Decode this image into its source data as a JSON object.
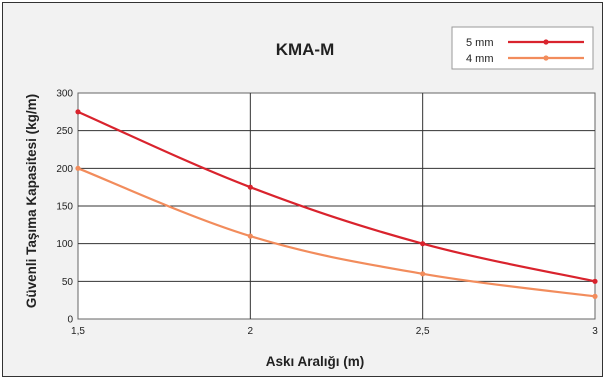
{
  "chart_data": {
    "type": "line",
    "title": "KMA-M",
    "xlabel": "Askı Aralığı (m)",
    "ylabel": "Güvenli Taşıma Kapasitesi (kg/m)",
    "x": [
      1.5,
      2,
      2.5,
      3
    ],
    "x_tick_labels": [
      "1,5",
      "2",
      "2,5",
      "3"
    ],
    "xlim": [
      1.5,
      3
    ],
    "ylim": [
      0,
      300
    ],
    "y_ticks": [
      0,
      50,
      100,
      150,
      200,
      250,
      300
    ],
    "grid": true,
    "legend_position": "top-right",
    "series": [
      {
        "name": "5 mm",
        "color": "#d9232d",
        "values": [
          275,
          175,
          100,
          50
        ]
      },
      {
        "name": "4 mm",
        "color": "#f28c5c",
        "values": [
          200,
          110,
          60,
          30
        ]
      }
    ]
  }
}
